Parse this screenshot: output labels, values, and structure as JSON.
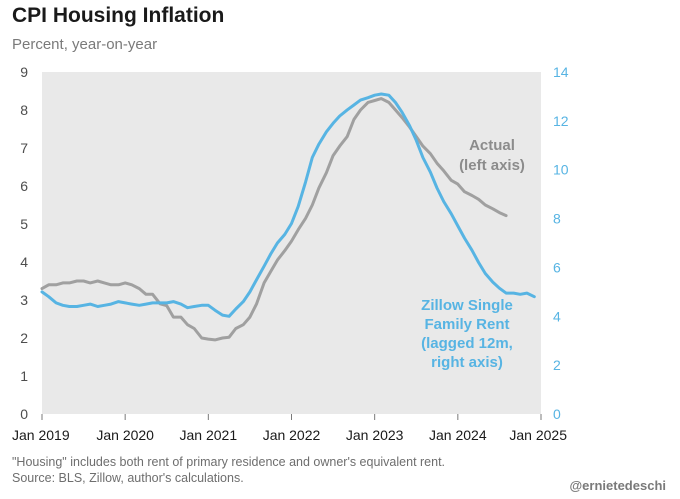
{
  "title": "CPI Housing Inflation",
  "subtitle": "Percent, year-on-year",
  "note_lines": [
    "\"Housing\" includes both rent of primary residence and owner's equivalent rent.",
    "Source: BLS, Zillow, author's calculations."
  ],
  "credit": "@ernietedeschi",
  "colors": {
    "actual": "#a0a0a0",
    "zillow": "#57b4e3",
    "axis_left": "#4d4d4d",
    "plot_bg": "#e9e9e9"
  },
  "chart_data": {
    "type": "line",
    "title": "CPI Housing Inflation",
    "ylabel": "Percent, year-on-year",
    "x_tick_labels": [
      "Jan 2019",
      "Jan 2020",
      "Jan 2021",
      "Jan 2022",
      "Jan 2023",
      "Jan 2024",
      "Jan 2025"
    ],
    "xlim": [
      2019.0,
      2025.0
    ],
    "ylim_left": [
      0,
      9
    ],
    "yticks_left": [
      0,
      1,
      2,
      3,
      4,
      5,
      6,
      7,
      8,
      9
    ],
    "ylim_right": [
      0,
      14
    ],
    "yticks_right": [
      0,
      2,
      4,
      6,
      8,
      10,
      12,
      14
    ],
    "grid": false,
    "annotations": {
      "actual": [
        "Actual",
        "(left axis)"
      ],
      "zillow": [
        "Zillow Single",
        "Family Rent",
        "(lagged 12m,",
        "right axis)"
      ]
    },
    "series": [
      {
        "name": "Actual",
        "axis": "left",
        "x": [
          2019.0,
          2019.08,
          2019.17,
          2019.25,
          2019.33,
          2019.42,
          2019.5,
          2019.58,
          2019.67,
          2019.75,
          2019.83,
          2019.92,
          2020.0,
          2020.08,
          2020.17,
          2020.25,
          2020.33,
          2020.42,
          2020.5,
          2020.58,
          2020.67,
          2020.75,
          2020.83,
          2020.92,
          2021.0,
          2021.08,
          2021.17,
          2021.25,
          2021.33,
          2021.42,
          2021.5,
          2021.58,
          2021.67,
          2021.75,
          2021.83,
          2021.92,
          2022.0,
          2022.08,
          2022.17,
          2022.25,
          2022.33,
          2022.42,
          2022.5,
          2022.58,
          2022.67,
          2022.75,
          2022.83,
          2022.92,
          2023.0,
          2023.08,
          2023.17,
          2023.25,
          2023.33,
          2023.42,
          2023.5,
          2023.58,
          2023.67,
          2023.75,
          2023.83,
          2023.92,
          2024.0,
          2024.08,
          2024.17,
          2024.25,
          2024.33,
          2024.42,
          2024.5,
          2024.58
        ],
        "values": [
          3.3,
          3.4,
          3.4,
          3.45,
          3.45,
          3.5,
          3.5,
          3.45,
          3.5,
          3.45,
          3.4,
          3.4,
          3.45,
          3.4,
          3.3,
          3.15,
          3.15,
          2.9,
          2.85,
          2.55,
          2.55,
          2.35,
          2.25,
          2.0,
          1.97,
          1.95,
          2.0,
          2.02,
          2.25,
          2.35,
          2.55,
          2.9,
          3.45,
          3.75,
          4.05,
          4.3,
          4.55,
          4.85,
          5.15,
          5.5,
          5.95,
          6.35,
          6.8,
          7.05,
          7.3,
          7.75,
          8.0,
          8.2,
          8.25,
          8.3,
          8.2,
          8.0,
          7.8,
          7.55,
          7.3,
          7.05,
          6.85,
          6.6,
          6.4,
          6.15,
          6.05,
          5.85,
          5.75,
          5.65,
          5.5,
          5.4,
          5.3,
          5.22
        ]
      },
      {
        "name": "Zillow Single Family Rent (lagged 12m)",
        "axis": "right",
        "x": [
          2019.0,
          2019.08,
          2019.17,
          2019.25,
          2019.33,
          2019.42,
          2019.5,
          2019.58,
          2019.67,
          2019.75,
          2019.83,
          2019.92,
          2020.0,
          2020.08,
          2020.17,
          2020.25,
          2020.33,
          2020.42,
          2020.5,
          2020.58,
          2020.67,
          2020.75,
          2020.83,
          2020.92,
          2021.0,
          2021.08,
          2021.17,
          2021.25,
          2021.33,
          2021.42,
          2021.5,
          2021.58,
          2021.67,
          2021.75,
          2021.83,
          2021.92,
          2022.0,
          2022.08,
          2022.17,
          2022.25,
          2022.33,
          2022.42,
          2022.5,
          2022.58,
          2022.67,
          2022.75,
          2022.83,
          2022.92,
          2023.0,
          2023.08,
          2023.17,
          2023.25,
          2023.33,
          2023.42,
          2023.5,
          2023.58,
          2023.67,
          2023.75,
          2023.83,
          2023.92,
          2024.0,
          2024.08,
          2024.17,
          2024.25,
          2024.33,
          2024.42,
          2024.5,
          2024.58,
          2024.67,
          2024.75,
          2024.83,
          2024.92
        ],
        "values": [
          5.0,
          4.8,
          4.55,
          4.45,
          4.4,
          4.4,
          4.45,
          4.5,
          4.4,
          4.45,
          4.5,
          4.6,
          4.55,
          4.5,
          4.45,
          4.5,
          4.55,
          4.55,
          4.55,
          4.6,
          4.5,
          4.35,
          4.4,
          4.45,
          4.45,
          4.25,
          4.05,
          4.0,
          4.3,
          4.6,
          5.0,
          5.5,
          6.05,
          6.55,
          7.0,
          7.35,
          7.8,
          8.5,
          9.5,
          10.5,
          11.05,
          11.55,
          11.9,
          12.2,
          12.45,
          12.65,
          12.85,
          12.95,
          13.05,
          13.1,
          13.05,
          12.75,
          12.35,
          11.8,
          11.2,
          10.5,
          9.9,
          9.25,
          8.7,
          8.2,
          7.7,
          7.2,
          6.7,
          6.2,
          5.75,
          5.4,
          5.15,
          4.95,
          4.95,
          4.9,
          4.95,
          4.8
        ]
      }
    ]
  }
}
